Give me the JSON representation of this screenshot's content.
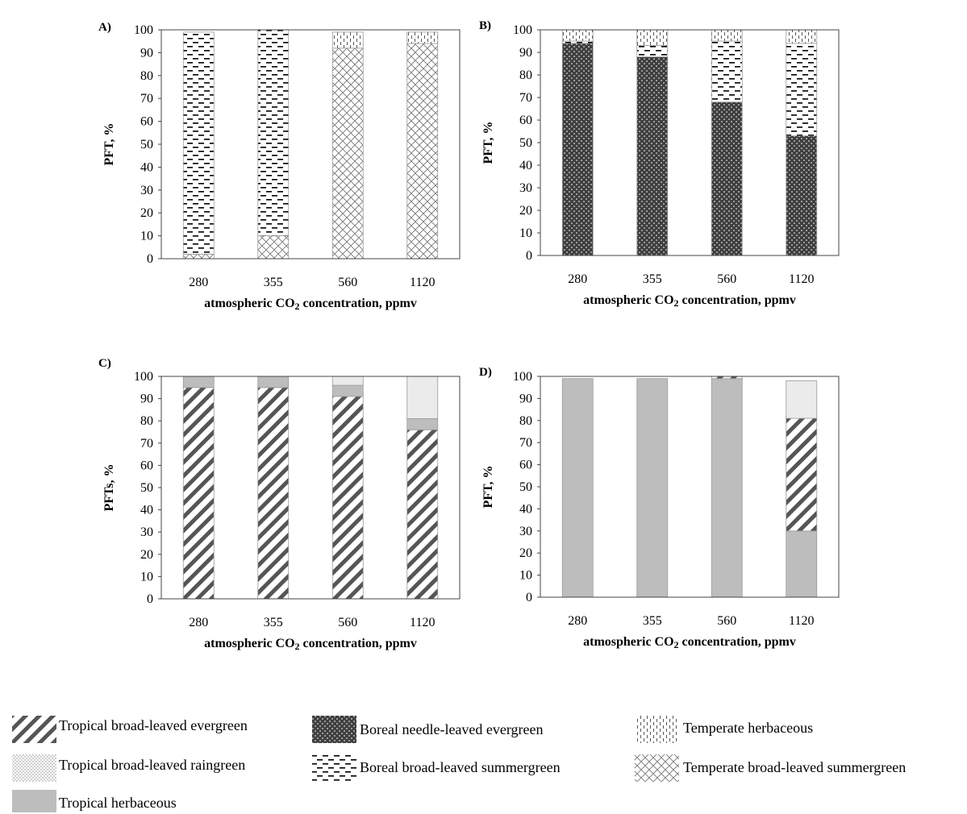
{
  "chart_data": [
    {
      "type": "bar",
      "stacked": true,
      "panel_label": "A)",
      "categories": [
        "280",
        "355",
        "560",
        "1120"
      ],
      "xlabel": "atmospheric CO₂ concentration, ppmv",
      "ylabel": "PFT, %",
      "ylim": [
        0,
        100
      ],
      "yticks": [
        0,
        10,
        20,
        30,
        40,
        50,
        60,
        70,
        80,
        90,
        100
      ],
      "grid": false,
      "series": [
        {
          "name": "Temperate broad-leaved summergreen",
          "values": [
            2,
            10,
            92,
            94
          ]
        },
        {
          "name": "Boreal broad-leaved summergreen",
          "values": [
            97,
            90,
            0,
            0
          ]
        },
        {
          "name": "Temperate herbaceous",
          "values": [
            0,
            0,
            7,
            5
          ]
        }
      ]
    },
    {
      "type": "bar",
      "stacked": true,
      "panel_label": "B)",
      "categories": [
        "280",
        "355",
        "560",
        "1120"
      ],
      "xlabel": "atmospheric CO₂ concentration, ppmv",
      "ylabel": "PFT, %",
      "ylim": [
        0,
        100
      ],
      "yticks": [
        0,
        10,
        20,
        30,
        40,
        50,
        60,
        70,
        80,
        90,
        100
      ],
      "grid": false,
      "series": [
        {
          "name": "Boreal needle-leaved evergreen",
          "values": [
            94,
            88,
            68,
            53
          ]
        },
        {
          "name": "Boreal broad-leaved summergreen",
          "values": [
            1,
            5,
            27,
            41
          ]
        },
        {
          "name": "Temperate herbaceous",
          "values": [
            5,
            7,
            5,
            6
          ]
        }
      ]
    },
    {
      "type": "bar",
      "stacked": true,
      "panel_label": "C)",
      "categories": [
        "280",
        "355",
        "560",
        "1120"
      ],
      "xlabel": "atmospheric CO₂ concentration, ppmv",
      "ylabel": "PFTs, %",
      "ylim": [
        0,
        100
      ],
      "yticks": [
        0,
        10,
        20,
        30,
        40,
        50,
        60,
        70,
        80,
        90,
        100
      ],
      "grid": false,
      "series": [
        {
          "name": "Tropical broad-leaved evergreen",
          "values": [
            95,
            95,
            91,
            76
          ]
        },
        {
          "name": "Tropical herbaceous",
          "values": [
            5,
            5,
            5,
            5
          ]
        },
        {
          "name": "Tropical broad-leaved raingreen",
          "values": [
            0,
            0,
            4,
            19
          ]
        }
      ]
    },
    {
      "type": "bar",
      "stacked": true,
      "panel_label": "D)",
      "categories": [
        "280",
        "355",
        "560",
        "1120"
      ],
      "xlabel": "atmospheric CO₂ concentration, ppmv",
      "ylabel": "PFT, %",
      "ylim": [
        0,
        100
      ],
      "yticks": [
        0,
        10,
        20,
        30,
        40,
        50,
        60,
        70,
        80,
        90,
        100
      ],
      "grid": false,
      "series": [
        {
          "name": "Tropical herbaceous",
          "values": [
            99,
            99,
            99,
            30
          ]
        },
        {
          "name": "Tropical broad-leaved evergreen",
          "values": [
            0,
            0,
            1,
            51
          ]
        },
        {
          "name": "Tropical broad-leaved raingreen",
          "values": [
            0,
            0,
            0,
            17
          ]
        }
      ]
    }
  ],
  "legend": {
    "items": [
      {
        "label": "Tropical broad-leaved evergreen",
        "pattern": "diagonal-hatch"
      },
      {
        "label": "Tropical broad-leaved raingreen",
        "pattern": "dots"
      },
      {
        "label": "Tropical herbaceous",
        "pattern": "solid-gray"
      },
      {
        "label": "Boreal needle-leaved evergreen",
        "pattern": "dark-checker"
      },
      {
        "label": "Boreal broad-leaved summergreen",
        "pattern": "dashes"
      },
      {
        "label": "Temperate herbaceous",
        "pattern": "dotted-vertical"
      },
      {
        "label": "Temperate broad-leaved summergreen",
        "pattern": "crosshatch"
      }
    ]
  },
  "colors": {
    "hatch": "#555555",
    "tropical_herbaceous": "#bdbdbd",
    "raingreen": "#ebebeb",
    "boreal_needle": "#4a4a4a"
  }
}
